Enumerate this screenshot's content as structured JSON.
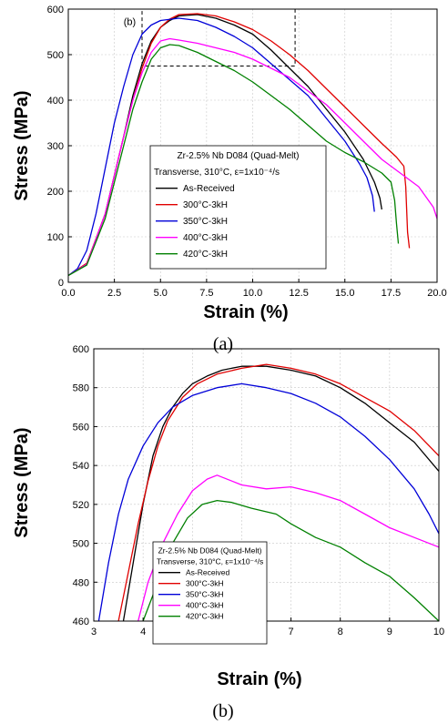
{
  "chart_data": [
    {
      "type": "line",
      "caption": "(a)",
      "inset_label": "(b)",
      "xlabel": "Strain (%)",
      "ylabel": "Stress (MPa)",
      "xlim": [
        0,
        20
      ],
      "ylim": [
        0,
        600
      ],
      "xticks": [
        0,
        2.5,
        5,
        7.5,
        10,
        12.5,
        15,
        17.5,
        20
      ],
      "xtick_labels": [
        "0.0",
        "2.5",
        "5.0",
        "7.5",
        "10.0",
        "12.5",
        "15.0",
        "17.5",
        "20.0"
      ],
      "yticks": [
        0,
        100,
        200,
        300,
        400,
        500,
        600
      ],
      "ytick_labels": [
        "0",
        "100",
        "200",
        "300",
        "400",
        "500",
        "600"
      ],
      "grid": true,
      "zoom_box": {
        "x": [
          4,
          12.3
        ],
        "y": [
          475,
          600
        ]
      },
      "legend": {
        "title_line1": "Zr-2.5% Nb D084 (Quad-Melt)",
        "title_line2": "Transverse, 310°C, ε=1x10⁻⁴/s",
        "placement": "center"
      },
      "series": [
        {
          "name": "As-Received",
          "color": "#000000",
          "points": [
            [
              0,
              15
            ],
            [
              1,
              40
            ],
            [
              2,
              150
            ],
            [
              3,
              320
            ],
            [
              3.5,
              410
            ],
            [
              4,
              480
            ],
            [
              4.5,
              530
            ],
            [
              5,
              560
            ],
            [
              5.5,
              575
            ],
            [
              6,
              585
            ],
            [
              7,
              588
            ],
            [
              8,
              580
            ],
            [
              9,
              565
            ],
            [
              10,
              545
            ],
            [
              11,
              510
            ],
            [
              12,
              470
            ],
            [
              13,
              430
            ],
            [
              14,
              380
            ],
            [
              15,
              330
            ],
            [
              16,
              270
            ],
            [
              16.6,
              220
            ],
            [
              16.9,
              185
            ],
            [
              17,
              160
            ]
          ]
        },
        {
          "name": "300°C-3kH",
          "color": "#e00000",
          "points": [
            [
              0,
              15
            ],
            [
              1,
              42
            ],
            [
              2,
              150
            ],
            [
              3,
              320
            ],
            [
              3.5,
              400
            ],
            [
              4,
              470
            ],
            [
              4.5,
              525
            ],
            [
              5,
              560
            ],
            [
              5.5,
              578
            ],
            [
              6,
              588
            ],
            [
              7,
              590
            ],
            [
              8,
              585
            ],
            [
              9,
              572
            ],
            [
              10,
              555
            ],
            [
              11,
              530
            ],
            [
              12,
              500
            ],
            [
              13,
              465
            ],
            [
              14,
              425
            ],
            [
              15,
              385
            ],
            [
              16,
              345
            ],
            [
              17,
              305
            ],
            [
              17.8,
              275
            ],
            [
              18.2,
              255
            ],
            [
              18.3,
              210
            ],
            [
              18.4,
              110
            ],
            [
              18.5,
              75
            ]
          ]
        },
        {
          "name": "350°C-3kH",
          "color": "#0000d8",
          "points": [
            [
              0,
              15
            ],
            [
              0.5,
              30
            ],
            [
              1,
              70
            ],
            [
              1.5,
              150
            ],
            [
              2,
              250
            ],
            [
              2.5,
              350
            ],
            [
              3,
              430
            ],
            [
              3.5,
              500
            ],
            [
              4,
              545
            ],
            [
              4.5,
              565
            ],
            [
              5,
              575
            ],
            [
              6,
              580
            ],
            [
              7,
              575
            ],
            [
              8,
              560
            ],
            [
              9,
              540
            ],
            [
              10,
              515
            ],
            [
              11,
              480
            ],
            [
              12,
              445
            ],
            [
              13,
              410
            ],
            [
              14,
              360
            ],
            [
              15,
              310
            ],
            [
              15.8,
              260
            ],
            [
              16.2,
              230
            ],
            [
              16.5,
              190
            ],
            [
              16.6,
              155
            ]
          ]
        },
        {
          "name": "400°C-3kH",
          "color": "#ff00ff",
          "points": [
            [
              0,
              15
            ],
            [
              1,
              40
            ],
            [
              2,
              150
            ],
            [
              3,
              320
            ],
            [
              3.5,
              400
            ],
            [
              4,
              460
            ],
            [
              4.5,
              505
            ],
            [
              5,
              530
            ],
            [
              5.5,
              535
            ],
            [
              6,
              532
            ],
            [
              7,
              525
            ],
            [
              8,
              515
            ],
            [
              9,
              505
            ],
            [
              10,
              490
            ],
            [
              11,
              470
            ],
            [
              12,
              450
            ],
            [
              13,
              420
            ],
            [
              14,
              390
            ],
            [
              15,
              350
            ],
            [
              16,
              310
            ],
            [
              17,
              270
            ],
            [
              18,
              240
            ],
            [
              19,
              210
            ],
            [
              19.8,
              165
            ],
            [
              20,
              140
            ]
          ]
        },
        {
          "name": "420°C-3kH",
          "color": "#008000",
          "points": [
            [
              0,
              15
            ],
            [
              1,
              38
            ],
            [
              2,
              140
            ],
            [
              3,
              300
            ],
            [
              3.5,
              380
            ],
            [
              4,
              440
            ],
            [
              4.5,
              490
            ],
            [
              5,
              515
            ],
            [
              5.5,
              522
            ],
            [
              6,
              520
            ],
            [
              7,
              505
            ],
            [
              8,
              485
            ],
            [
              9,
              465
            ],
            [
              10,
              440
            ],
            [
              11,
              410
            ],
            [
              12,
              380
            ],
            [
              13,
              345
            ],
            [
              14,
              310
            ],
            [
              15,
              285
            ],
            [
              16,
              265
            ],
            [
              17,
              240
            ],
            [
              17.5,
              220
            ],
            [
              17.7,
              180
            ],
            [
              17.8,
              130
            ],
            [
              17.9,
              85
            ]
          ]
        }
      ]
    },
    {
      "type": "line",
      "caption": "(b)",
      "xlabel": "Strain (%)",
      "ylabel": "Stress (MPa)",
      "xlim": [
        3,
        10
      ],
      "ylim": [
        460,
        600
      ],
      "xticks": [
        3,
        4,
        5,
        6,
        7,
        8,
        9,
        10
      ],
      "xtick_labels": [
        "3",
        "4",
        "5",
        "6",
        "7",
        "8",
        "9",
        "10"
      ],
      "yticks": [
        460,
        480,
        500,
        520,
        540,
        560,
        580,
        600
      ],
      "ytick_labels": [
        "460",
        "480",
        "500",
        "520",
        "540",
        "560",
        "580",
        "600"
      ],
      "grid": true,
      "legend": {
        "title_line1": "Zr-2.5% Nb D084 (Quad-Melt)",
        "title_line2": "Transverse, 310°C, ε=1x10⁻⁴/s",
        "placement": "bottom-left"
      },
      "series": [
        {
          "name": "As-Received",
          "color": "#000000",
          "points": [
            [
              3.6,
              460
            ],
            [
              3.8,
              490
            ],
            [
              4.0,
              520
            ],
            [
              4.2,
              545
            ],
            [
              4.4,
              560
            ],
            [
              4.6,
              570
            ],
            [
              4.8,
              577
            ],
            [
              5.0,
              582
            ],
            [
              5.3,
              586
            ],
            [
              5.6,
              589
            ],
            [
              6.0,
              591
            ],
            [
              6.5,
              591
            ],
            [
              7.0,
              589
            ],
            [
              7.5,
              586
            ],
            [
              8.0,
              580
            ],
            [
              8.5,
              572
            ],
            [
              9.0,
              562
            ],
            [
              9.5,
              552
            ],
            [
              10.0,
              537
            ]
          ]
        },
        {
          "name": "300°C-3kH",
          "color": "#e00000",
          "points": [
            [
              3.5,
              460
            ],
            [
              3.7,
              485
            ],
            [
              3.9,
              510
            ],
            [
              4.1,
              532
            ],
            [
              4.3,
              550
            ],
            [
              4.5,
              563
            ],
            [
              4.8,
              575
            ],
            [
              5.1,
              582
            ],
            [
              5.5,
              587
            ],
            [
              6.0,
              590
            ],
            [
              6.5,
              592
            ],
            [
              7.0,
              590
            ],
            [
              7.5,
              587
            ],
            [
              8.0,
              582
            ],
            [
              8.5,
              575
            ],
            [
              9.0,
              568
            ],
            [
              9.5,
              558
            ],
            [
              10.0,
              545
            ]
          ]
        },
        {
          "name": "350°C-3kH",
          "color": "#0000d8",
          "points": [
            [
              3.1,
              460
            ],
            [
              3.3,
              490
            ],
            [
              3.5,
              515
            ],
            [
              3.7,
              533
            ],
            [
              4.0,
              550
            ],
            [
              4.3,
              562
            ],
            [
              4.6,
              570
            ],
            [
              5.0,
              576
            ],
            [
              5.5,
              580
            ],
            [
              6.0,
              582
            ],
            [
              6.5,
              580
            ],
            [
              7.0,
              577
            ],
            [
              7.5,
              572
            ],
            [
              8.0,
              565
            ],
            [
              8.5,
              555
            ],
            [
              9.0,
              543
            ],
            [
              9.5,
              528
            ],
            [
              9.8,
              515
            ],
            [
              10.0,
              505
            ]
          ]
        },
        {
          "name": "400°C-3kH",
          "color": "#ff00ff",
          "points": [
            [
              3.9,
              460
            ],
            [
              4.1,
              480
            ],
            [
              4.4,
              500
            ],
            [
              4.7,
              515
            ],
            [
              5.0,
              527
            ],
            [
              5.3,
              533
            ],
            [
              5.5,
              535
            ],
            [
              5.8,
              532
            ],
            [
              6.0,
              530
            ],
            [
              6.5,
              528
            ],
            [
              7.0,
              529
            ],
            [
              7.5,
              526
            ],
            [
              8.0,
              522
            ],
            [
              8.5,
              515
            ],
            [
              9.0,
              508
            ],
            [
              9.5,
              503
            ],
            [
              10.0,
              498
            ]
          ]
        },
        {
          "name": "420°C-3kH",
          "color": "#008000",
          "points": [
            [
              4.0,
              460
            ],
            [
              4.3,
              480
            ],
            [
              4.6,
              500
            ],
            [
              4.9,
              513
            ],
            [
              5.2,
              520
            ],
            [
              5.5,
              522
            ],
            [
              5.8,
              521
            ],
            [
              6.2,
              518
            ],
            [
              6.7,
              515
            ],
            [
              7.0,
              510
            ],
            [
              7.5,
              503
            ],
            [
              8.0,
              498
            ],
            [
              8.5,
              490
            ],
            [
              9.0,
              483
            ],
            [
              9.5,
              472
            ],
            [
              10.0,
              460
            ]
          ]
        }
      ]
    }
  ]
}
